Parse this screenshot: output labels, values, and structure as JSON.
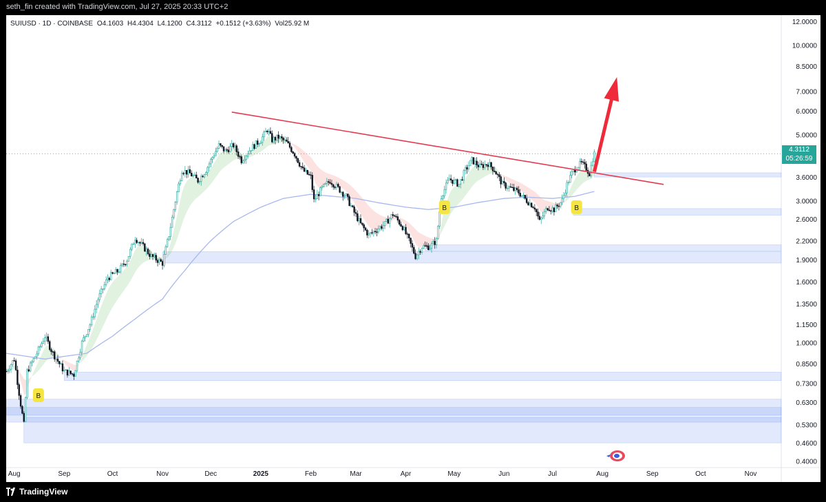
{
  "watermark": "seth_fin created with TradingView.com, Jul 27, 2025 20:33 UTC+2",
  "header": {
    "symbol": "SUIUSD · 1D · COINBASE",
    "open": "O4.1603",
    "high": "H4.4304",
    "low": "L4.1200",
    "close": "C4.3112",
    "change": "+0.1512 (+3.63%)",
    "volume": "Vol25.92 M"
  },
  "price_tag": {
    "price": "4.3112",
    "countdown": "05:26:59"
  },
  "footer": {
    "brand": "TradingView"
  },
  "chart_data": {
    "type": "candlestick",
    "symbol": "SUIUSD",
    "interval": "1D",
    "exchange": "COINBASE",
    "scale": "log",
    "ylim": [
      0.38,
      12.6
    ],
    "y_ticks": [
      "12.0000",
      "10.0000",
      "8.5000",
      "7.0000",
      "6.0000",
      "5.0000",
      "3.6000",
      "3.0000",
      "2.6000",
      "2.2000",
      "1.9000",
      "1.6000",
      "1.3500",
      "1.1500",
      "1.0000",
      "0.8500",
      "0.7300",
      "0.6300",
      "0.5300",
      "0.4600",
      "0.4000"
    ],
    "x_ticks": [
      "Aug",
      "Sep",
      "Oct",
      "Nov",
      "Dec",
      "2025",
      "Feb",
      "Mar",
      "Apr",
      "May",
      "Jun",
      "Jul",
      "Aug",
      "Sep",
      "Oct",
      "Nov"
    ],
    "x_range": [
      "2024-07-27",
      "2025-11-20"
    ],
    "price_path": [
      [
        "2024-07-27",
        0.8
      ],
      [
        "2024-08-01",
        0.88
      ],
      [
        "2024-08-05",
        0.62
      ],
      [
        "2024-08-07",
        0.53
      ],
      [
        "2024-08-09",
        0.8
      ],
      [
        "2024-08-15",
        0.92
      ],
      [
        "2024-08-20",
        1.05
      ],
      [
        "2024-08-25",
        0.92
      ],
      [
        "2024-09-01",
        0.8
      ],
      [
        "2024-09-07",
        0.78
      ],
      [
        "2024-09-12",
        1.0
      ],
      [
        "2024-09-17",
        1.15
      ],
      [
        "2024-09-22",
        1.4
      ],
      [
        "2024-09-28",
        1.65
      ],
      [
        "2024-10-05",
        1.75
      ],
      [
        "2024-10-10",
        1.9
      ],
      [
        "2024-10-15",
        2.25
      ],
      [
        "2024-10-20",
        2.1
      ],
      [
        "2024-10-25",
        1.95
      ],
      [
        "2024-11-01",
        1.85
      ],
      [
        "2024-11-05",
        2.3
      ],
      [
        "2024-11-10",
        3.2
      ],
      [
        "2024-11-13",
        3.8
      ],
      [
        "2024-11-18",
        3.7
      ],
      [
        "2024-11-23",
        3.5
      ],
      [
        "2024-11-28",
        3.8
      ],
      [
        "2024-12-02",
        4.2
      ],
      [
        "2024-12-06",
        4.6
      ],
      [
        "2024-12-10",
        4.4
      ],
      [
        "2024-12-15",
        4.6
      ],
      [
        "2024-12-20",
        4.1
      ],
      [
        "2024-12-26",
        4.5
      ],
      [
        "2025-01-01",
        4.8
      ],
      [
        "2025-01-05",
        5.2
      ],
      [
        "2025-01-08",
        4.8
      ],
      [
        "2025-01-12",
        4.9
      ],
      [
        "2025-01-17",
        4.7
      ],
      [
        "2025-01-22",
        4.3
      ],
      [
        "2025-01-27",
        3.8
      ],
      [
        "2025-02-01",
        3.6
      ],
      [
        "2025-02-03",
        3.0
      ],
      [
        "2025-02-08",
        3.3
      ],
      [
        "2025-02-13",
        3.5
      ],
      [
        "2025-02-18",
        3.3
      ],
      [
        "2025-02-23",
        3.1
      ],
      [
        "2025-02-27",
        2.8
      ],
      [
        "2025-03-04",
        2.5
      ],
      [
        "2025-03-09",
        2.3
      ],
      [
        "2025-03-14",
        2.4
      ],
      [
        "2025-03-19",
        2.5
      ],
      [
        "2025-03-24",
        2.7
      ],
      [
        "2025-03-30",
        2.45
      ],
      [
        "2025-04-03",
        2.2
      ],
      [
        "2025-04-07",
        1.95
      ],
      [
        "2025-04-11",
        2.1
      ],
      [
        "2025-04-16",
        2.1
      ],
      [
        "2025-04-20",
        2.2
      ],
      [
        "2025-04-23",
        3.1
      ],
      [
        "2025-04-28",
        3.55
      ],
      [
        "2025-05-04",
        3.4
      ],
      [
        "2025-05-08",
        3.8
      ],
      [
        "2025-05-12",
        4.1
      ],
      [
        "2025-05-17",
        3.9
      ],
      [
        "2025-05-22",
        4.0
      ],
      [
        "2025-05-26",
        3.8
      ],
      [
        "2025-05-31",
        3.4
      ],
      [
        "2025-06-05",
        3.3
      ],
      [
        "2025-06-10",
        3.2
      ],
      [
        "2025-06-15",
        3.0
      ],
      [
        "2025-06-20",
        2.85
      ],
      [
        "2025-06-23",
        2.55
      ],
      [
        "2025-06-28",
        2.85
      ],
      [
        "2025-07-02",
        2.8
      ],
      [
        "2025-07-07",
        3.0
      ],
      [
        "2025-07-10",
        3.4
      ],
      [
        "2025-07-13",
        3.7
      ],
      [
        "2025-07-16",
        3.9
      ],
      [
        "2025-07-19",
        4.0
      ],
      [
        "2025-07-22",
        3.85
      ],
      [
        "2025-07-24",
        3.7
      ],
      [
        "2025-07-26",
        4.15
      ],
      [
        "2025-07-27",
        4.3112
      ]
    ],
    "moving_average": [
      [
        "2024-07-27",
        0.92
      ],
      [
        "2024-08-20",
        0.88
      ],
      [
        "2024-09-15",
        0.92
      ],
      [
        "2024-10-01",
        1.05
      ],
      [
        "2024-10-15",
        1.2
      ],
      [
        "2024-11-01",
        1.4
      ],
      [
        "2024-11-15",
        1.75
      ],
      [
        "2024-12-01",
        2.2
      ],
      [
        "2024-12-15",
        2.55
      ],
      [
        "2025-01-01",
        2.85
      ],
      [
        "2025-01-15",
        3.05
      ],
      [
        "2025-02-01",
        3.15
      ],
      [
        "2025-02-15",
        3.1
      ],
      [
        "2025-03-01",
        3.05
      ],
      [
        "2025-03-15",
        2.95
      ],
      [
        "2025-04-01",
        2.85
      ],
      [
        "2025-04-15",
        2.8
      ],
      [
        "2025-05-01",
        2.85
      ],
      [
        "2025-05-15",
        2.95
      ],
      [
        "2025-06-01",
        3.05
      ],
      [
        "2025-06-15",
        3.08
      ],
      [
        "2025-07-01",
        3.05
      ],
      [
        "2025-07-15",
        3.1
      ],
      [
        "2025-07-27",
        3.22
      ]
    ],
    "trendline": {
      "from": [
        "2024-12-14",
        5.95
      ],
      "to": [
        "2025-09-08",
        3.4
      ],
      "color": "#e53950"
    },
    "projection_arrow": {
      "from": [
        "2025-07-27",
        3.75
      ],
      "to": [
        "2025-08-10",
        7.8
      ],
      "color": "#ef2b3b"
    },
    "zones": [
      {
        "from": "2025-07-27",
        "to": "2025-11-20",
        "low": 3.6,
        "high": 3.72
      },
      {
        "from": "2025-07-14",
        "to": "2025-11-20",
        "low": 2.68,
        "high": 2.82
      },
      {
        "from": "2025-04-13",
        "to": "2025-11-20",
        "low": 2.03,
        "high": 2.13
      },
      {
        "from": "2024-11-01",
        "to": "2025-11-20",
        "low": 1.85,
        "high": 2.02
      },
      {
        "from": "2024-09-01",
        "to": "2025-11-20",
        "low": 0.745,
        "high": 0.795
      },
      {
        "from": "2024-07-27",
        "to": "2025-11-20",
        "low": 0.57,
        "high": 0.645
      },
      {
        "from": "2024-07-27",
        "to": "2025-11-20",
        "low": 0.54,
        "high": 0.605
      },
      {
        "from": "2024-08-07",
        "to": "2025-11-20",
        "low": 0.46,
        "high": 0.56
      }
    ],
    "buy_signals": [
      {
        "date": "2024-08-16",
        "price": 0.665,
        "label": "B"
      },
      {
        "date": "2025-04-25",
        "price": 2.85,
        "label": "B"
      },
      {
        "date": "2025-07-16",
        "price": 2.85,
        "label": "B"
      }
    ],
    "colors": {
      "up": "#26a69a",
      "down": "#131722",
      "ma": "#a7b8ee",
      "zone": "#5c86ec",
      "signal": "#f4e542",
      "price_tag": "#26a69a"
    }
  }
}
